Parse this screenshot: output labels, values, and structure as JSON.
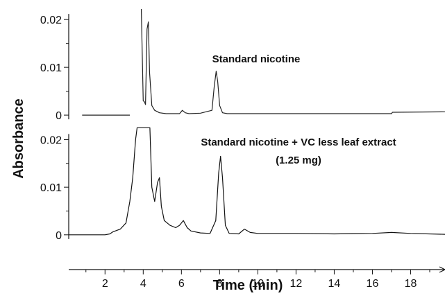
{
  "chart_data": {
    "type": "line",
    "xlabel": "Time (min)",
    "ylabel": "Absorbance",
    "xlim": [
      0.1,
      19.8
    ],
    "x_ticks": [
      2,
      4,
      6,
      8,
      10,
      12,
      14,
      16,
      18
    ],
    "grid": false,
    "panels": [
      {
        "name": "top",
        "ylim": [
          -0.001,
          0.0222
        ],
        "y_ticks": [
          0,
          0.01,
          0.02
        ],
        "y_tick_labels": [
          "0",
          "0.01",
          "0.02"
        ],
        "annotation": [
          "Standard nicotine"
        ],
        "line_color": "#222222",
        "segments": [
          {
            "x": [
              0.8,
              2.0,
              3.3
            ],
            "y": [
              0,
              0,
              0
            ]
          },
          {
            "x": [
              3.9,
              4.0,
              4.06,
              4.12,
              4.2,
              4.27,
              4.33,
              4.45,
              4.6,
              4.85,
              5.2,
              5.9,
              6.05,
              6.2,
              6.4,
              7.0,
              7.6,
              7.72,
              7.82,
              7.9,
              8.0,
              8.15,
              8.4,
              9.0,
              11.0,
              14.0,
              17.0,
              17.05,
              19.8
            ],
            "y": [
              0.0225,
              0.003,
              0.0028,
              0.0022,
              0.018,
              0.0195,
              0.009,
              0.002,
              0.001,
              0.0005,
              0.0003,
              0.0003,
              0.001,
              0.0005,
              0.0003,
              0.0004,
              0.001,
              0.006,
              0.0092,
              0.007,
              0.002,
              0.0005,
              0.0003,
              0.0003,
              0.0003,
              0.0003,
              0.0003,
              0.0006,
              0.0007
            ]
          }
        ]
      },
      {
        "name": "bottom",
        "ylim": [
          -0.0025,
          0.0205
        ],
        "y_ticks": [
          0,
          0.01,
          0.02
        ],
        "y_tick_labels": [
          "0",
          "0.01",
          "0.02"
        ],
        "annotation": [
          "Standard nicotine + VC less leaf extract",
          "(1.25 mg)"
        ],
        "line_color": "#111111",
        "segments": [
          {
            "x": [
              0.0,
              1.0,
              2.0,
              2.25,
              2.4,
              2.8,
              3.1,
              3.3,
              3.45,
              3.6,
              3.68,
              3.75,
              3.85,
              3.95,
              4.05,
              4.15,
              4.25,
              4.35,
              4.45,
              4.6,
              4.75,
              4.85,
              4.95,
              5.1,
              5.4,
              5.7,
              5.9,
              6.1,
              6.3,
              6.5,
              7.0,
              7.5,
              7.8,
              7.95,
              8.05,
              8.15,
              8.3,
              8.5,
              9.0,
              9.3,
              9.6,
              10.0,
              12.0,
              14.0,
              16.0,
              17.0,
              18.0,
              19.8
            ],
            "y": [
              0,
              0,
              0,
              0.0002,
              0.0006,
              0.0012,
              0.0025,
              0.007,
              0.012,
              0.02,
              0.0225,
              0.0225,
              0.0225,
              0.0225,
              0.0225,
              0.0225,
              0.0225,
              0.0225,
              0.01,
              0.007,
              0.011,
              0.012,
              0.006,
              0.003,
              0.002,
              0.0015,
              0.002,
              0.003,
              0.0015,
              0.0008,
              0.0004,
              0.0003,
              0.003,
              0.013,
              0.0165,
              0.012,
              0.002,
              0.0003,
              0.0002,
              0.0012,
              0.0005,
              0.0003,
              0.0003,
              0.0002,
              0.0003,
              0.0005,
              0.0003,
              0.0001
            ]
          }
        ]
      }
    ]
  }
}
